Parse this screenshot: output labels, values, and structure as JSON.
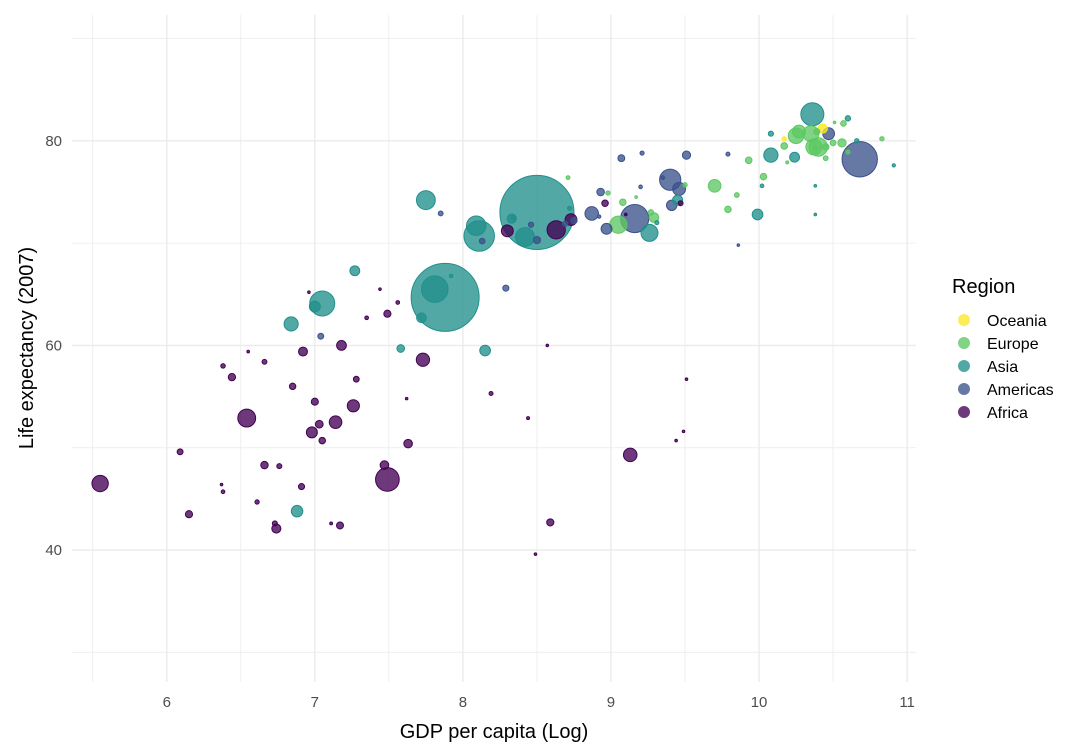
{
  "chart_data": {
    "type": "scatter",
    "title": "",
    "xlabel": "GDP per capita (Log)",
    "ylabel": "Life expectancy (2007)",
    "xlim": [
      5.36,
      11.06
    ],
    "ylim": [
      27.1,
      92.3
    ],
    "x_ticks": [
      6,
      7,
      8,
      9,
      10,
      11
    ],
    "y_ticks": [
      40,
      60,
      80
    ],
    "x_tick_labels": [
      "6",
      "7",
      "8",
      "9",
      "10",
      "11"
    ],
    "y_tick_labels": [
      "40",
      "60",
      "80"
    ],
    "grid": true,
    "size_variable": "population (millions)",
    "legend": {
      "title": "Region",
      "position": "right",
      "entries": [
        {
          "name": "Oceania",
          "color": "#FDE725"
        },
        {
          "name": "Europe",
          "color": "#5DC863"
        },
        {
          "name": "Asia",
          "color": "#21908C"
        },
        {
          "name": "Americas",
          "color": "#3B528B"
        },
        {
          "name": "Africa",
          "color": "#440154"
        }
      ]
    },
    "series": [
      {
        "name": "Africa",
        "points": [
          [
            8.73,
            72.3,
            33.3
          ],
          [
            8.59,
            42.7,
            12.4
          ],
          [
            7.28,
            56.7,
            8.1
          ],
          [
            9.44,
            50.7,
            1.6
          ],
          [
            7.03,
            52.3,
            14.3
          ],
          [
            6.09,
            49.6,
            8.4
          ],
          [
            7.63,
            50.4,
            17.7
          ],
          [
            6.61,
            44.7,
            4.4
          ],
          [
            7.05,
            50.7,
            10.2
          ],
          [
            6.96,
            65.2,
            0.7
          ],
          [
            5.55,
            46.5,
            64.6
          ],
          [
            8.19,
            55.3,
            3.8
          ],
          [
            7.47,
            48.3,
            18.0
          ],
          [
            7.62,
            54.8,
            0.5
          ],
          [
            8.63,
            71.3,
            80.3
          ],
          [
            9.49,
            51.6,
            0.55
          ],
          [
            6.38,
            58.0,
            4.9
          ],
          [
            6.54,
            52.9,
            76.5
          ],
          [
            9.51,
            56.7,
            1.45
          ],
          [
            6.55,
            59.4,
            1.7
          ],
          [
            7.18,
            60.0,
            22.9
          ],
          [
            6.85,
            56.0,
            9.9
          ],
          [
            6.37,
            46.4,
            1.5
          ],
          [
            7.26,
            54.1,
            35.6
          ],
          [
            7.11,
            42.6,
            2.0
          ],
          [
            6.38,
            45.7,
            3.2
          ],
          [
            9.47,
            73.9,
            6.0
          ],
          [
            6.92,
            59.4,
            19.2
          ],
          [
            6.66,
            48.3,
            13.3
          ],
          [
            7.0,
            54.5,
            12.0
          ],
          [
            7.56,
            64.2,
            3.3
          ],
          [
            9.1,
            72.8,
            1.25
          ],
          [
            8.3,
            71.2,
            33.8
          ],
          [
            6.74,
            42.1,
            19.9
          ],
          [
            8.44,
            52.9,
            2.1
          ],
          [
            6.44,
            56.9,
            12.9
          ],
          [
            7.49,
            46.9,
            135.0
          ],
          [
            6.91,
            46.2,
            9.0
          ],
          [
            7.44,
            65.5,
            0.2
          ],
          [
            7.49,
            63.1,
            12.3
          ],
          [
            6.73,
            42.6,
            6.1
          ],
          [
            9.13,
            49.3,
            43.9
          ],
          [
            7.73,
            58.6,
            42.3
          ],
          [
            8.49,
            39.6,
            1.1
          ],
          [
            7.14,
            52.5,
            38.1
          ],
          [
            6.66,
            58.4,
            5.7
          ],
          [
            8.96,
            73.9,
            10.3
          ],
          [
            6.98,
            51.5,
            29.2
          ],
          [
            7.17,
            42.4,
            11.7
          ],
          [
            6.15,
            43.5,
            12.3
          ],
          [
            7.35,
            62.7,
            3.3
          ],
          [
            8.57,
            60.0,
            0.5
          ],
          [
            6.76,
            48.2,
            6.1
          ]
        ]
      },
      {
        "name": "Americas",
        "points": [
          [
            9.46,
            75.3,
            40.3
          ],
          [
            8.29,
            65.6,
            9.1
          ],
          [
            9.16,
            72.4,
            190.0
          ],
          [
            10.47,
            80.7,
            33.4
          ],
          [
            9.51,
            78.6,
            16.3
          ],
          [
            8.87,
            72.9,
            44.2
          ],
          [
            9.21,
            78.8,
            4.1
          ],
          [
            9.07,
            78.3,
            11.4
          ],
          [
            8.75,
            72.2,
            9.3
          ],
          [
            8.93,
            75.0,
            13.8
          ],
          [
            8.69,
            71.9,
            6.9
          ],
          [
            8.5,
            70.3,
            12.6
          ],
          [
            7.04,
            60.9,
            8.5
          ],
          [
            8.13,
            70.2,
            7.5
          ],
          [
            8.92,
            72.6,
            2.8
          ],
          [
            9.4,
            76.2,
            108.7
          ],
          [
            7.85,
            72.9,
            5.7
          ],
          [
            9.2,
            75.5,
            3.2
          ],
          [
            8.46,
            71.8,
            6.7
          ],
          [
            8.97,
            71.4,
            28.7
          ],
          [
            9.79,
            78.7,
            3.9
          ],
          [
            9.86,
            69.8,
            1.1
          ],
          [
            10.68,
            78.2,
            301.1
          ],
          [
            9.35,
            76.4,
            3.4
          ],
          [
            9.41,
            73.7,
            26.1
          ]
        ]
      },
      {
        "name": "Asia",
        "points": [
          [
            6.88,
            43.8,
            31.9
          ],
          [
            10.38,
            75.6,
            0.7
          ],
          [
            7.05,
            64.1,
            150.4
          ],
          [
            7.58,
            59.7,
            14.1
          ],
          [
            8.5,
            73.0,
            1318.7
          ],
          [
            10.6,
            82.2,
            6.98
          ],
          [
            7.88,
            64.7,
            1110.4
          ],
          [
            8.11,
            70.7,
            223.5
          ],
          [
            9.26,
            71.0,
            69.5
          ],
          [
            8.15,
            59.5,
            27.5
          ],
          [
            10.08,
            80.7,
            6.4
          ],
          [
            10.36,
            82.6,
            127.5
          ],
          [
            8.34,
            72.5,
            6.1
          ],
          [
            7.27,
            67.3,
            23.3
          ],
          [
            10.08,
            78.6,
            49.0
          ],
          [
            10.91,
            77.6,
            2.5
          ],
          [
            9.31,
            72.0,
            3.9
          ],
          [
            9.45,
            74.2,
            24.8
          ],
          [
            7.92,
            66.8,
            2.9
          ],
          [
            6.84,
            62.1,
            47.8
          ],
          [
            7.0,
            63.8,
            28.9
          ],
          [
            10.02,
            75.6,
            3.2
          ],
          [
            7.81,
            65.5,
            169.3
          ],
          [
            8.09,
            71.7,
            91.1
          ],
          [
            10.38,
            72.8,
            0.9
          ],
          [
            9.99,
            72.8,
            27.6
          ],
          [
            10.66,
            80.0,
            4.6
          ],
          [
            8.33,
            72.4,
            20.4
          ],
          [
            10.24,
            78.4,
            23.2
          ],
          [
            8.42,
            70.6,
            85.3
          ],
          [
            7.75,
            74.2,
            85.3
          ],
          [
            8.72,
            73.4,
            4.0
          ],
          [
            7.72,
            62.7,
            22.2
          ]
        ]
      },
      {
        "name": "Europe",
        "points": [
          [
            8.71,
            76.4,
            3.6
          ],
          [
            10.5,
            79.8,
            8.2
          ],
          [
            10.45,
            79.4,
            10.4
          ],
          [
            8.98,
            74.9,
            4.6
          ],
          [
            9.27,
            73.0,
            7.3
          ],
          [
            9.5,
            75.7,
            4.5
          ],
          [
            10.03,
            76.5,
            10.2
          ],
          [
            10.45,
            78.3,
            5.5
          ],
          [
            10.38,
            79.3,
            5.2
          ],
          [
            10.35,
            80.7,
            61.1
          ],
          [
            10.4,
            79.4,
            82.4
          ],
          [
            10.17,
            79.5,
            10.7
          ],
          [
            9.79,
            73.3,
            9.96
          ],
          [
            10.51,
            81.8,
            0.3
          ],
          [
            10.6,
            78.9,
            4.1
          ],
          [
            10.25,
            80.5,
            58.1
          ],
          [
            9.17,
            74.5,
            0.68
          ],
          [
            10.56,
            79.8,
            16.6
          ],
          [
            10.83,
            80.2,
            4.6
          ],
          [
            9.7,
            75.6,
            38.5
          ],
          [
            9.93,
            78.1,
            10.6
          ],
          [
            9.29,
            72.5,
            22.3
          ],
          [
            9.08,
            74.0,
            10.2
          ],
          [
            9.85,
            74.7,
            5.4
          ],
          [
            10.19,
            77.9,
            2.0
          ],
          [
            10.27,
            80.9,
            40.4
          ],
          [
            10.39,
            80.9,
            9.0
          ],
          [
            10.57,
            81.7,
            7.6
          ],
          [
            9.05,
            71.8,
            71.2
          ],
          [
            10.37,
            79.4,
            60.8
          ]
        ]
      },
      {
        "name": "Oceania",
        "points": [
          [
            10.43,
            81.2,
            20.4
          ],
          [
            10.17,
            80.2,
            4.1
          ]
        ]
      }
    ]
  }
}
